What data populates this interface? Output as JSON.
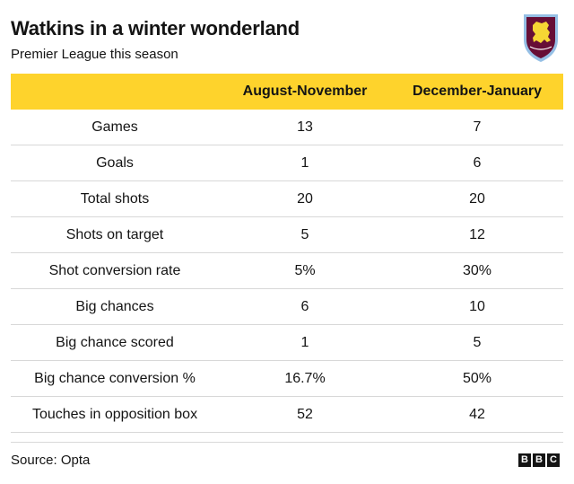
{
  "header": {
    "title": "Watkins in a winter wonderland",
    "subtitle": "Premier League this season"
  },
  "logo": {
    "name": "aston-villa-crest",
    "text": "ASTON VILLA",
    "colors": {
      "claret": "#95bfe5",
      "shield": "#670e36",
      "lion": "#f6d634"
    }
  },
  "chart_data": {
    "type": "table",
    "columns": [
      "",
      "August-November",
      "December-January"
    ],
    "rows": [
      {
        "label": "Games",
        "values": [
          "13",
          "7"
        ]
      },
      {
        "label": "Goals",
        "values": [
          "1",
          "6"
        ]
      },
      {
        "label": "Total shots",
        "values": [
          "20",
          "20"
        ]
      },
      {
        "label": "Shots on target",
        "values": [
          "5",
          "12"
        ]
      },
      {
        "label": "Shot conversion rate",
        "values": [
          "5%",
          "30%"
        ]
      },
      {
        "label": "Big chances",
        "values": [
          "6",
          "10"
        ]
      },
      {
        "label": "Big chance scored",
        "values": [
          "1",
          "5"
        ]
      },
      {
        "label": "Big chance conversion %",
        "values": [
          "16.7%",
          "50%"
        ]
      },
      {
        "label": "Touches in opposition box",
        "values": [
          "52",
          "42"
        ]
      }
    ]
  },
  "footer": {
    "source": "Source: Opta",
    "brand_letters": [
      "B",
      "B",
      "C"
    ]
  },
  "colors": {
    "header_band": "#fed32c",
    "text": "#141414",
    "rule": "#d8d8d8"
  }
}
